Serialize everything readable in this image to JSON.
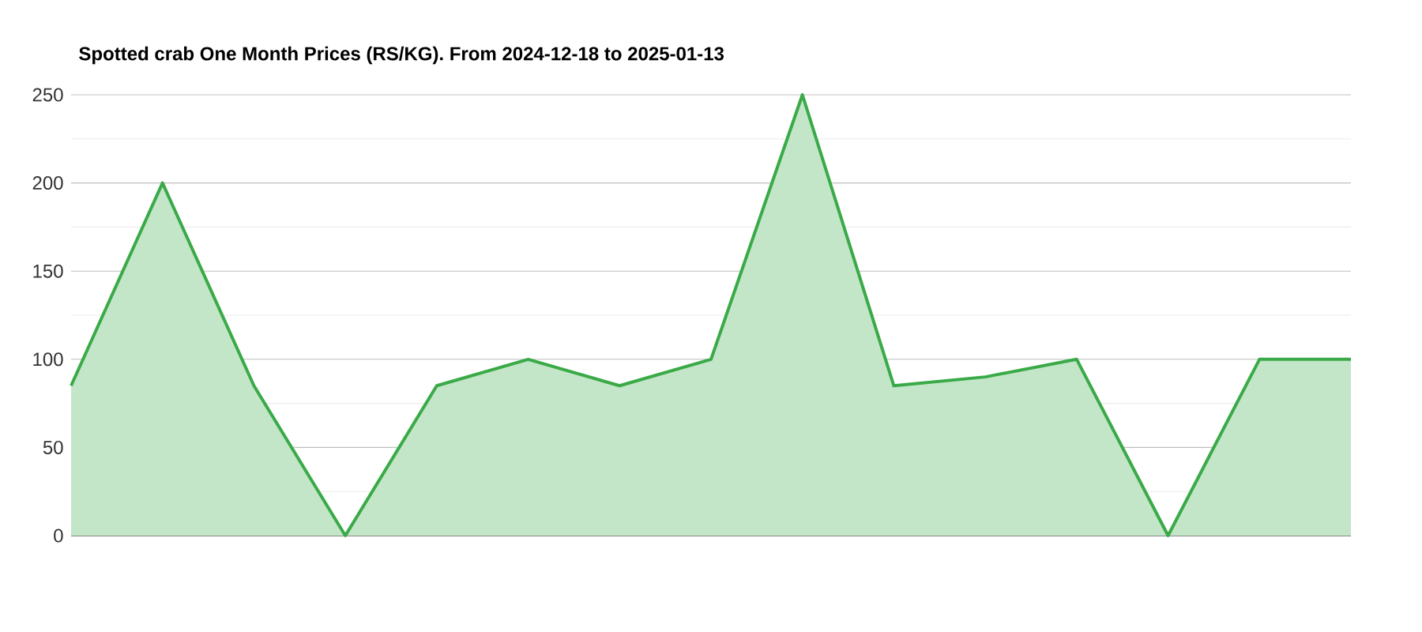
{
  "chart_data": {
    "type": "area",
    "title": "Spotted crab One Month Prices (RS/KG). From 2024-12-18 to 2025-01-13",
    "categories": [
      null,
      null,
      null,
      null,
      null,
      null,
      null,
      null,
      null,
      null,
      null,
      null,
      null,
      null,
      null
    ],
    "series": [
      {
        "color": "#3aaa48",
        "values": [
          85,
          200,
          85,
          0,
          85,
          100,
          85,
          100,
          250,
          85,
          90,
          100,
          0,
          100,
          100
        ]
      }
    ],
    "ylim": [
      0,
      250
    ],
    "yticks": [
      0,
      50,
      100,
      150,
      200,
      250
    ],
    "grid": true
  }
}
